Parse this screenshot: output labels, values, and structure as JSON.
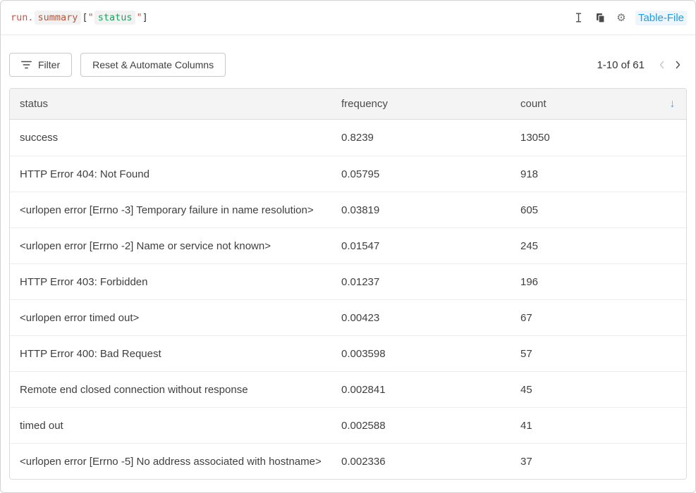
{
  "code_bar": {
    "tokens": [
      {
        "text": "run.",
        "type": "keyword"
      },
      {
        "text": "summary",
        "type": "property"
      },
      {
        "text": "[",
        "type": "bracket"
      },
      {
        "text": "\"",
        "type": "quote"
      },
      {
        "text": "status",
        "type": "string"
      },
      {
        "text": "\"",
        "type": "quote"
      },
      {
        "text": "]",
        "type": "bracket"
      }
    ],
    "icons": [
      "text-cursor-icon",
      "copy-icon",
      "gear-icon"
    ],
    "panel_link": "Table-File"
  },
  "toolbar": {
    "filter_label": "Filter",
    "reset_label": "Reset & Automate Columns",
    "pagination": "1-10 of 61"
  },
  "table": {
    "columns": [
      "status",
      "frequency",
      "count"
    ],
    "sort_icon": "↓",
    "rows": [
      [
        "success",
        "0.8239",
        "13050"
      ],
      [
        "HTTP Error 404: Not Found",
        "0.05795",
        "918"
      ],
      [
        "<urlopen error [Errno -3] Temporary failure in name resolution>",
        "0.03819",
        "605"
      ],
      [
        "<urlopen error [Errno -2] Name or service not known>",
        "0.01547",
        "245"
      ],
      [
        "HTTP Error 403: Forbidden",
        "0.01237",
        "196"
      ],
      [
        "<urlopen error timed out>",
        "0.00423",
        "67"
      ],
      [
        "HTTP Error 400: Bad Request",
        "0.003598",
        "57"
      ],
      [
        "Remote end closed connection without response",
        "0.002841",
        "45"
      ],
      [
        "timed out",
        "0.002588",
        "41"
      ],
      [
        "<urlopen error [Errno -5] No address associated with hostname>",
        "0.002336",
        "37"
      ]
    ]
  },
  "gear_glyph": "⚙",
  "colors": {
    "tok-keyword": "#ce5540",
    "tok-property": "#b3573e",
    "tok-string": "#1fa05e",
    "tok-quote": "#ce5540",
    "tok-bracket": "#383838",
    "chip-bg": "#f2f2f2",
    "link-blue": "#1f9ce8",
    "sort-arrow": "#6b9bd2",
    "header-bg": "#f4f4f4"
  }
}
